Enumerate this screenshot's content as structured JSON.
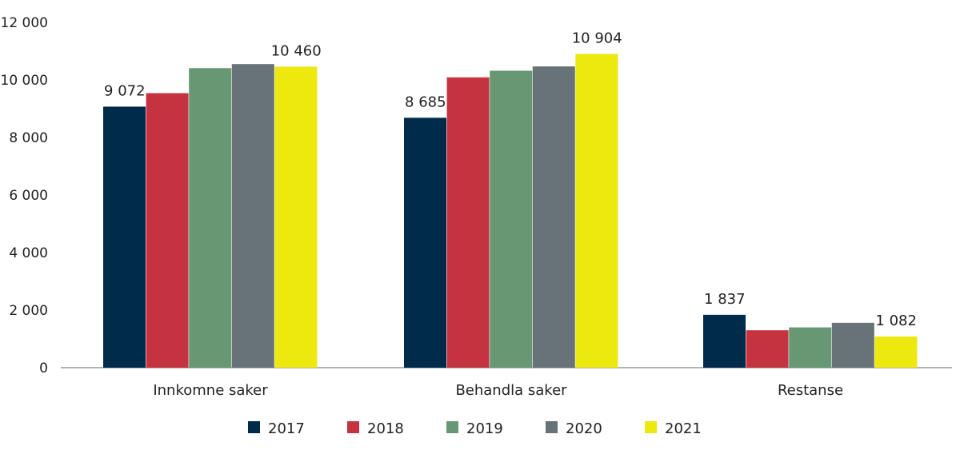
{
  "chart_data": {
    "type": "bar",
    "categories": [
      "Innkomne saker",
      "Behandla saker",
      "Restanse"
    ],
    "series": [
      {
        "name": "2017",
        "color": "#002b4b",
        "values": [
          9072,
          8685,
          1837
        ]
      },
      {
        "name": "2018",
        "color": "#c53340",
        "values": [
          9540,
          10090,
          1300
        ]
      },
      {
        "name": "2019",
        "color": "#689774",
        "values": [
          10410,
          10320,
          1400
        ]
      },
      {
        "name": "2020",
        "color": "#687279",
        "values": [
          10550,
          10470,
          1560
        ]
      },
      {
        "name": "2021",
        "color": "#ede80e",
        "values": [
          10460,
          10904,
          1082
        ]
      }
    ],
    "data_labels": [
      {
        "series": "2017",
        "category": "Innkomne saker",
        "text": "9 072"
      },
      {
        "series": "2021",
        "category": "Innkomne saker",
        "text": "10 460"
      },
      {
        "series": "2017",
        "category": "Behandla saker",
        "text": "8 685"
      },
      {
        "series": "2021",
        "category": "Behandla saker",
        "text": "10 904"
      },
      {
        "series": "2017",
        "category": "Restanse",
        "text": "1 837"
      },
      {
        "series": "2021",
        "category": "Restanse",
        "text": "1 082"
      }
    ],
    "yticks": [
      "0",
      "2 000",
      "4 000",
      "6 000",
      "8 000",
      "10 000",
      "12 000"
    ],
    "ylim": [
      0,
      12000
    ],
    "grid": false,
    "legend": "bottom",
    "title": "",
    "xlabel": "",
    "ylabel": ""
  }
}
